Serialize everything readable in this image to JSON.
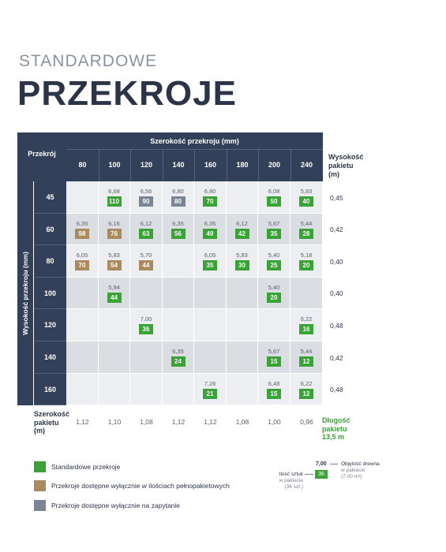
{
  "header": {
    "pre_title": "STANDARDOWE",
    "title": "PRZEKROJE"
  },
  "table": {
    "corner_label": "Przekrój",
    "width_header": "Szerokość przekroju (mm)",
    "height_axis_label": "Wysokość przekroju (mm)",
    "package_height_header": [
      "Wysokość",
      "pakietu",
      "(m)"
    ],
    "columns": [
      "80",
      "100",
      "120",
      "140",
      "160",
      "180",
      "200",
      "240"
    ],
    "rows": [
      {
        "label": "45",
        "package_height": "0,45",
        "cells": [
          null,
          {
            "vol": "6,68",
            "count": "110",
            "type": "green"
          },
          {
            "vol": "6,56",
            "count": "90",
            "type": "grey"
          },
          {
            "vol": "6,80",
            "count": "80",
            "type": "grey"
          },
          {
            "vol": "6,80",
            "count": "70",
            "type": "green"
          },
          null,
          {
            "vol": "6,08",
            "count": "50",
            "type": "green"
          },
          {
            "vol": "5,83",
            "count": "40",
            "type": "green"
          }
        ]
      },
      {
        "label": "60",
        "package_height": "0,42",
        "cells": [
          {
            "vol": "6,35",
            "count": "98",
            "type": "brown"
          },
          {
            "vol": "6,16",
            "count": "76",
            "type": "brown"
          },
          {
            "vol": "6,12",
            "count": "63",
            "type": "green"
          },
          {
            "vol": "6,35",
            "count": "56",
            "type": "green"
          },
          {
            "vol": "6,35",
            "count": "49",
            "type": "green"
          },
          {
            "vol": "6,12",
            "count": "42",
            "type": "green"
          },
          {
            "vol": "5,67",
            "count": "35",
            "type": "green"
          },
          {
            "vol": "5,44",
            "count": "28",
            "type": "green"
          }
        ]
      },
      {
        "label": "80",
        "package_height": "0,40",
        "cells": [
          {
            "vol": "6,05",
            "count": "70",
            "type": "brown"
          },
          {
            "vol": "5,83",
            "count": "54",
            "type": "brown"
          },
          {
            "vol": "5,70",
            "count": "44",
            "type": "brown"
          },
          null,
          {
            "vol": "6,05",
            "count": "35",
            "type": "green"
          },
          {
            "vol": "5,83",
            "count": "30",
            "type": "green"
          },
          {
            "vol": "5,40",
            "count": "25",
            "type": "green"
          },
          {
            "vol": "5,18",
            "count": "20",
            "type": "green"
          }
        ]
      },
      {
        "label": "100",
        "package_height": "0,40",
        "cells": [
          null,
          {
            "vol": "5,94",
            "count": "44",
            "type": "green"
          },
          null,
          null,
          null,
          null,
          {
            "vol": "5,40",
            "count": "20",
            "type": "green"
          },
          null
        ]
      },
      {
        "label": "120",
        "package_height": "0,48",
        "cells": [
          null,
          null,
          {
            "vol": "7,00",
            "count": "36",
            "type": "green"
          },
          null,
          null,
          null,
          null,
          {
            "vol": "6,22",
            "count": "16",
            "type": "green"
          }
        ]
      },
      {
        "label": "140",
        "package_height": "0,42",
        "cells": [
          null,
          null,
          null,
          {
            "vol": "6,35",
            "count": "24",
            "type": "green"
          },
          null,
          null,
          {
            "vol": "5,67",
            "count": "15",
            "type": "green"
          },
          {
            "vol": "5,44",
            "count": "12",
            "type": "green"
          }
        ]
      },
      {
        "label": "160",
        "package_height": "0,48",
        "cells": [
          null,
          null,
          null,
          null,
          {
            "vol": "7,26",
            "count": "21",
            "type": "green"
          },
          null,
          {
            "vol": "6,48",
            "count": "15",
            "type": "green"
          },
          {
            "vol": "6,22",
            "count": "12",
            "type": "green"
          }
        ]
      }
    ],
    "footer_label": [
      "Szerokość",
      "pakietu",
      "(m)"
    ],
    "package_widths": [
      "1,12",
      "1,10",
      "1,08",
      "1,12",
      "1,12",
      "1,08",
      "1,00",
      "0,96"
    ],
    "package_length": [
      "Długość",
      "pakietu",
      "13,5 m"
    ]
  },
  "legend": [
    {
      "text": "Standardowe przekroje",
      "color": "#3aa336"
    },
    {
      "text": "Przekroje dostępne wyłącznie w ilościach pełnopakietowych",
      "color": "#ac8a5f"
    },
    {
      "text": "Przekroje dostępne wyłącznie na zapytanie",
      "color": "#7a8595"
    }
  ],
  "example": {
    "volume": "7,00",
    "count": "36",
    "volume_label": [
      "Objętość drewna",
      "w pakiecie",
      "(7,00 m³)"
    ],
    "count_label": [
      "Ilość sztuk",
      "w pakiecie",
      "(36 szt.)"
    ]
  },
  "colors": {
    "navy": "#334059",
    "green": "#3aa336",
    "brown": "#ac8a5f",
    "grey": "#7a8595",
    "cell_dark": "#dadde2",
    "cell_light": "#eceef1"
  }
}
